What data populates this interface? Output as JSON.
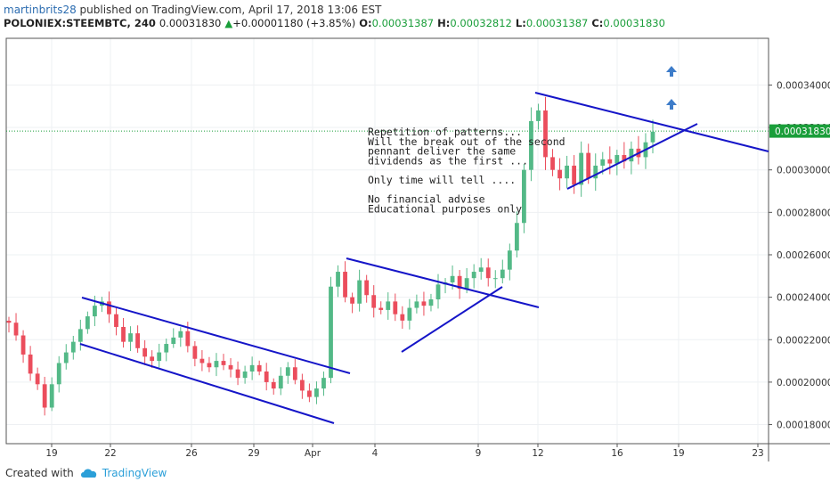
{
  "header": {
    "author": "martinbrits28",
    "published": " published on TradingView.com, April 17, 2018 13:06 EST",
    "symbol": "POLONIEX:STEEMBTC, 240",
    "last": "0.00031830",
    "change_arrow": "▲",
    "change": "+0.00001180 (+3.85%)",
    "o_label": "O:",
    "o_val": "0.00031387",
    "h_label": "H:",
    "h_val": "0.00032812",
    "l_label": "L:",
    "l_val": "0.00031387",
    "c_label": "C:",
    "c_val": "0.00031830"
  },
  "footer": {
    "created": "Created with",
    "brand": "TradingView"
  },
  "colors": {
    "up": "#53b987",
    "down": "#eb4d5c",
    "trendline": "#1515c8",
    "arrow": "#3d7cc9",
    "price_tag": "#1a9e3a"
  },
  "chart_data": {
    "type": "candlestick",
    "x_tick_labels": [
      "19",
      "22",
      "26",
      "29",
      "Apr",
      "4",
      "9",
      "12",
      "16",
      "19",
      "23"
    ],
    "y_tick_labels": [
      "0.00018000",
      "0.00020000",
      "0.00022000",
      "0.00024000",
      "0.00026000",
      "0.00028000",
      "0.00030000",
      "0.00032000",
      "0.00034000"
    ],
    "ylim": [
      0.000171,
      0.000362
    ],
    "current_price_label": "0.00031830",
    "current_price": 0.0003183,
    "annotation": [
      "Repetition of patterns...",
      "Will the break out of the second",
      "pennant deliver the same",
      "dividends as the first ...",
      "",
      "Only time will tell ....",
      "",
      "No financial advise",
      "Educational purposes only"
    ],
    "series_close": [
      0.000228,
      0.000222,
      0.000213,
      0.000204,
      0.000199,
      0.000188,
      0.000199,
      0.000209,
      0.000214,
      0.000219,
      0.000225,
      0.000231,
      0.000236,
      0.000238,
      0.000232,
      0.000226,
      0.000219,
      0.000223,
      0.000216,
      0.000212,
      0.00021,
      0.000214,
      0.000218,
      0.000221,
      0.000224,
      0.000217,
      0.000211,
      0.000209,
      0.000207,
      0.00021,
      0.000208,
      0.000206,
      0.000202,
      0.000205,
      0.000208,
      0.000205,
      0.0002,
      0.000197,
      0.000203,
      0.000207,
      0.000201,
      0.000196,
      0.000193,
      0.000197,
      0.000202,
      0.000245,
      0.000252,
      0.00024,
      0.000237,
      0.000248,
      0.000241,
      0.000235,
      0.000234,
      0.000238,
      0.000232,
      0.000229,
      0.000235,
      0.000238,
      0.000236,
      0.000239,
      0.000246,
      0.000247,
      0.00025,
      0.000244,
      0.000249,
      0.000252,
      0.000254,
      0.000249,
      0.000249,
      0.000253,
      0.000262,
      0.000275,
      0.0003,
      0.000323,
      0.000328,
      0.000306,
      0.0003,
      0.000296,
      0.000302,
      0.000293,
      0.000308,
      0.000296,
      0.000302,
      0.000305,
      0.000303,
      0.000307,
      0.000304,
      0.00031,
      0.000306,
      0.000313,
      0.000318
    ]
  }
}
